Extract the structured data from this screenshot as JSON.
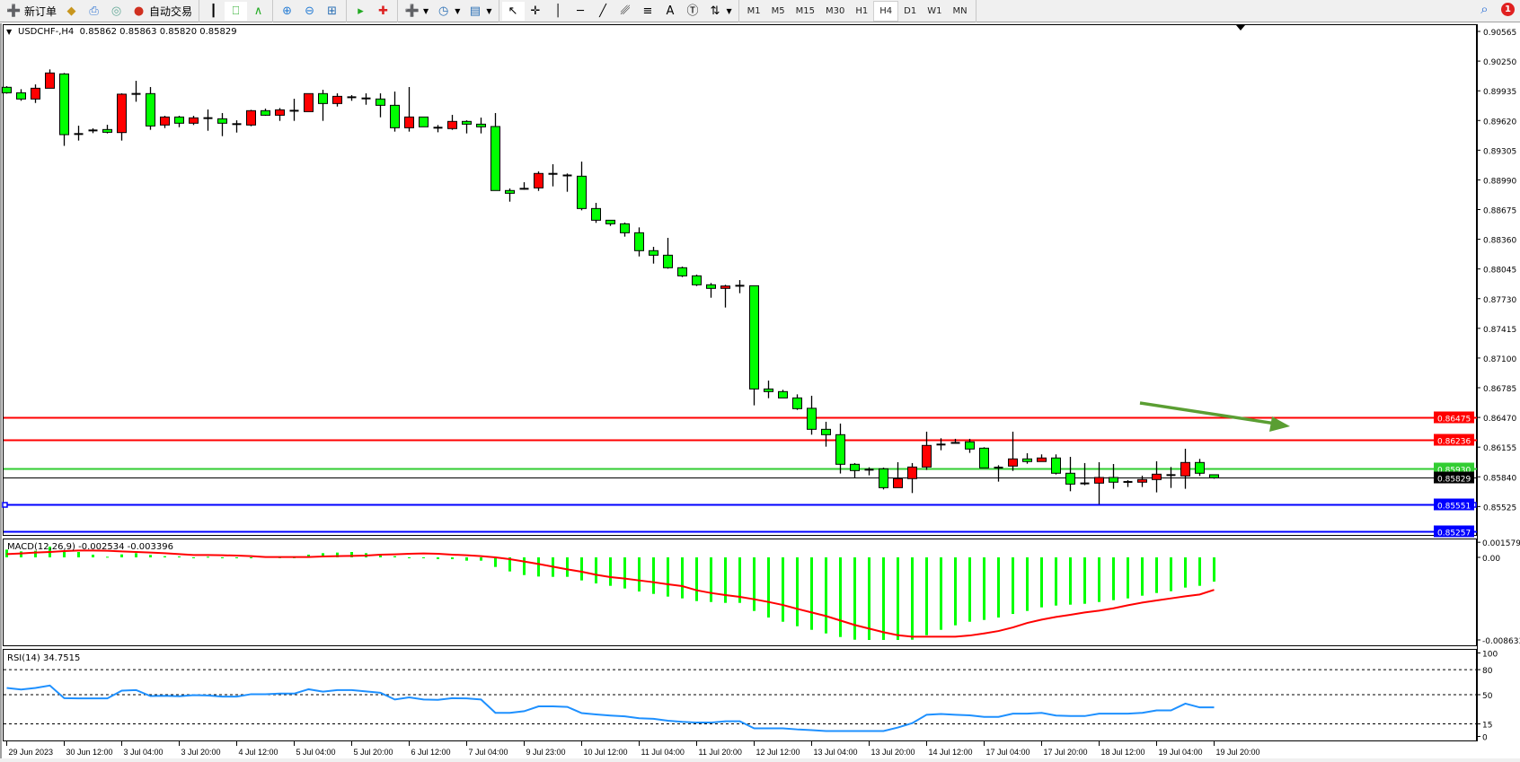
{
  "toolbar": {
    "new_order": "新订单",
    "auto_trading": "自动交易",
    "timeframes": [
      "M1",
      "M5",
      "M15",
      "M30",
      "H1",
      "H4",
      "D1",
      "W1",
      "MN"
    ],
    "active_timeframe": "H4",
    "notification_count": "1"
  },
  "chart": {
    "header": "USDCHF-,H4  0.85862 0.85863 0.85820 0.85829",
    "colors": {
      "bull": "#ff0000",
      "bear": "#00ff00",
      "outline": "#000000",
      "macd_hist": "#00ff00",
      "macd_signal": "#ff0000",
      "rsi": "#1e90ff",
      "arrow": "#5a9e32"
    }
  },
  "chart_data": [
    {
      "type": "candlestick",
      "title": "USDCHF-,H4",
      "ohlc_fields": [
        "open",
        "high",
        "low",
        "close"
      ],
      "candles": [
        [
          0.89972,
          0.89984,
          0.89905,
          0.89914
        ],
        [
          0.89914,
          0.89952,
          0.89829,
          0.89848
        ],
        [
          0.89848,
          0.90003,
          0.89806,
          0.89962
        ],
        [
          0.89962,
          0.90162,
          0.89962,
          0.90124
        ],
        [
          0.90114,
          0.90124,
          0.89351,
          0.8947
        ],
        [
          0.89467,
          0.89565,
          0.89407,
          0.89486
        ],
        [
          0.89505,
          0.89537,
          0.89486,
          0.89524
        ],
        [
          0.89524,
          0.89575,
          0.89483,
          0.89495
        ],
        [
          0.89492,
          0.89908,
          0.89407,
          0.89899
        ],
        [
          0.89902,
          0.90041,
          0.89819,
          0.89902
        ],
        [
          0.89905,
          0.89975,
          0.89521,
          0.89562
        ],
        [
          0.89572,
          0.8967,
          0.8954,
          0.89657
        ],
        [
          0.89657,
          0.8967,
          0.89549,
          0.89591
        ],
        [
          0.89591,
          0.8967,
          0.89572,
          0.89648
        ],
        [
          0.89645,
          0.89737,
          0.89511,
          0.89645
        ],
        [
          0.89638,
          0.89699,
          0.89454,
          0.89591
        ],
        [
          0.89591,
          0.89622,
          0.89492,
          0.89572
        ],
        [
          0.89572,
          0.89733,
          0.89559,
          0.89724
        ],
        [
          0.89724,
          0.89746,
          0.8967,
          0.89676
        ],
        [
          0.89676,
          0.89752,
          0.89616,
          0.89733
        ],
        [
          0.89733,
          0.89851,
          0.89616,
          0.89714
        ],
        [
          0.89714,
          0.89905,
          0.89714,
          0.89905
        ],
        [
          0.89905,
          0.89946,
          0.89616,
          0.898
        ],
        [
          0.898,
          0.89908,
          0.89768,
          0.89876
        ],
        [
          0.89876,
          0.89889,
          0.89829,
          0.89857
        ],
        [
          0.89854,
          0.89908,
          0.89787,
          0.89854
        ],
        [
          0.89848,
          0.89908,
          0.89654,
          0.89781
        ],
        [
          0.89781,
          0.89927,
          0.89502,
          0.89543
        ],
        [
          0.89543,
          0.89975,
          0.89502,
          0.89657
        ],
        [
          0.89657,
          0.89657,
          0.89553,
          0.89553
        ],
        [
          0.89553,
          0.89572,
          0.89495,
          0.89534
        ],
        [
          0.89534,
          0.8968,
          0.89521,
          0.8961
        ],
        [
          0.8961,
          0.89622,
          0.89483,
          0.89581
        ],
        [
          0.89581,
          0.89651,
          0.89483,
          0.89553
        ],
        [
          0.89556,
          0.89699,
          0.88877,
          0.88877
        ],
        [
          0.88877,
          0.88899,
          0.88759,
          0.88848
        ],
        [
          0.88886,
          0.88965,
          0.88886,
          0.88905
        ],
        [
          0.88905,
          0.8908,
          0.88873,
          0.89058
        ],
        [
          0.89054,
          0.89156,
          0.88921,
          0.89054
        ],
        [
          0.89045,
          0.89058,
          0.88864,
          0.89029
        ],
        [
          0.89029,
          0.89184,
          0.88667,
          0.88686
        ],
        [
          0.88686,
          0.88746,
          0.88534,
          0.88562
        ],
        [
          0.88562,
          0.88562,
          0.88502,
          0.88524
        ],
        [
          0.88524,
          0.88537,
          0.88388,
          0.88429
        ],
        [
          0.88429,
          0.88486,
          0.88178,
          0.88239
        ],
        [
          0.88239,
          0.8828,
          0.88102,
          0.88191
        ],
        [
          0.88191,
          0.88375,
          0.88048,
          0.88058
        ],
        [
          0.88058,
          0.8807,
          0.87959,
          0.87972
        ],
        [
          0.87972,
          0.87985,
          0.87864,
          0.87877
        ],
        [
          0.87877,
          0.87896,
          0.8774,
          0.87839
        ],
        [
          0.87839,
          0.87877,
          0.87636,
          0.87864
        ],
        [
          0.87867,
          0.87927,
          0.87788,
          0.87867
        ],
        [
          0.87867,
          0.87867,
          0.86598,
          0.86772
        ],
        [
          0.86772,
          0.86861,
          0.86674,
          0.86744
        ],
        [
          0.86744,
          0.86763,
          0.86677,
          0.86677
        ],
        [
          0.86677,
          0.86715,
          0.8655,
          0.86563
        ],
        [
          0.86567,
          0.867,
          0.86287,
          0.86344
        ],
        [
          0.86344,
          0.86424,
          0.8616,
          0.86287
        ],
        [
          0.86287,
          0.86405,
          0.85875,
          0.85973
        ],
        [
          0.85973,
          0.85986,
          0.85827,
          0.85906
        ],
        [
          0.85906,
          0.85941,
          0.85856,
          0.85925
        ],
        [
          0.85925,
          0.85938,
          0.85706,
          0.85725
        ],
        [
          0.85725,
          0.85995,
          0.85725,
          0.85821
        ],
        [
          0.85821,
          0.85986,
          0.85668,
          0.85944
        ],
        [
          0.85944,
          0.86319,
          0.85913,
          0.86173
        ],
        [
          0.86173,
          0.86249,
          0.86122,
          0.86192
        ],
        [
          0.86197,
          0.86243,
          0.86192,
          0.86203
        ],
        [
          0.86211,
          0.86243,
          0.86094,
          0.86135
        ],
        [
          0.86144,
          0.86154,
          0.85935,
          0.85935
        ],
        [
          0.85938,
          0.85963,
          0.85789,
          0.85938
        ],
        [
          0.85954,
          0.86319,
          0.85903,
          0.8603
        ],
        [
          0.8603,
          0.8609,
          0.85979,
          0.86002
        ],
        [
          0.86002,
          0.86078,
          0.86002,
          0.8604
        ],
        [
          0.8604,
          0.86078,
          0.85865,
          0.85878
        ],
        [
          0.85878,
          0.86052,
          0.85687,
          0.85763
        ],
        [
          0.8577,
          0.85986,
          0.85751,
          0.8577
        ],
        [
          0.85773,
          0.85995,
          0.85551,
          0.85833
        ],
        [
          0.85833,
          0.85976,
          0.85713,
          0.85783
        ],
        [
          0.85786,
          0.85805,
          0.85732,
          0.85786
        ],
        [
          0.85783,
          0.85852,
          0.85732,
          0.85811
        ],
        [
          0.85811,
          0.86005,
          0.85675,
          0.85868
        ],
        [
          0.85868,
          0.85944,
          0.85722,
          0.85849
        ],
        [
          0.85849,
          0.86138,
          0.85713,
          0.85992
        ],
        [
          0.85992,
          0.8603,
          0.85849,
          0.85878
        ],
        [
          0.85862,
          0.85863,
          0.8582,
          0.85829
        ]
      ],
      "x_tick_labels": [
        "29 Jun 2023",
        "30 Jun 12:00",
        "3 Jul 04:00",
        "3 Jul 20:00",
        "4 Jul 12:00",
        "5 Jul 04:00",
        "5 Jul 20:00",
        "6 Jul 12:00",
        "7 Jul 04:00",
        "9 Jul 23:00",
        "10 Jul 12:00",
        "11 Jul 04:00",
        "11 Jul 20:00",
        "12 Jul 12:00",
        "13 Jul 04:00",
        "13 Jul 20:00",
        "14 Jul 12:00",
        "17 Jul 04:00",
        "17 Jul 20:00",
        "18 Jul 12:00",
        "19 Jul 04:00",
        "19 Jul 20:00"
      ],
      "y_tick_labels": [
        "0.90565",
        "0.90250",
        "0.89935",
        "0.89620",
        "0.89305",
        "0.88990",
        "0.88675",
        "0.88360",
        "0.88045",
        "0.87730",
        "0.87415",
        "0.87100",
        "0.86785",
        "0.86470",
        "0.86155",
        "0.85840",
        "0.85525",
        "0.85210"
      ],
      "ylim": [
        0.8521,
        0.90565
      ],
      "horizontal_lines": [
        {
          "price": "0.86475",
          "color": "#ff0000"
        },
        {
          "price": "0.86236",
          "color": "#ff0000"
        },
        {
          "price": "0.85930",
          "color": "#32cd32"
        },
        {
          "price": "0.85829",
          "color": "#000000"
        },
        {
          "price": "0.85551",
          "color": "#0000ff"
        },
        {
          "price": "0.85257",
          "color": "#0000ff"
        }
      ],
      "grid": false
    },
    {
      "type": "bar+line",
      "title": "MACD(12,26,9) -0.002534 -0.003396",
      "y_tick_labels": [
        "0.001579",
        "0.00",
        "-0.008633"
      ],
      "ylim": [
        -0.008633,
        0.001579
      ],
      "series": [
        {
          "kind": "histogram",
          "values": [
            0.000814,
            0.000626,
            0.000689,
            0.001127,
            0.000563,
            0.000563,
            0.000282,
            6.3e-05,
            0.000313,
            0.000438,
            0.00025,
            0.000125,
            9.4e-05,
            0,
            6.3e-05,
            0,
            -3.1e-05,
            0,
            6.3e-05,
            -6.3e-05,
            0,
            0.000282,
            0.000438,
            0.000501,
            0.000563,
            0.000438,
            0.000282,
            0.000125,
            0,
            -9.4e-05,
            -0.000188,
            -0.000188,
            -0.000344,
            -0.000344,
            -0.001002,
            -0.001471,
            -0.001847,
            -0.002003,
            -0.002035,
            -0.002035,
            -0.00241,
            -0.002723,
            -0.002974,
            -0.003255,
            -0.003568,
            -0.003819,
            -0.0041,
            -0.004288,
            -0.00457,
            -0.004664,
            -0.004758,
            -0.004758,
            -0.005603,
            -0.006291,
            -0.00673,
            -0.007199,
            -0.007575,
            -0.00795,
            -0.008326,
            -0.008608,
            -0.008633,
            -0.008633,
            -0.008633,
            -0.008608,
            -0.008138,
            -0.007575,
            -0.007105,
            -0.00673,
            -0.006542,
            -0.006291,
            -0.005916,
            -0.005603,
            -0.005227,
            -0.005039,
            -0.004945,
            -0.004852,
            -0.004664,
            -0.004476,
            -0.004288,
            -0.004006,
            -0.003725,
            -0.003537,
            -0.003161,
            -0.002974,
            -0.002534
          ]
        },
        {
          "kind": "signal",
          "values": [
            0.000344,
            0.000407,
            0.000501,
            0.000563,
            0.000657,
            0.00072,
            0.00072,
            0.000689,
            0.000626,
            0.000563,
            0.000501,
            0.000438,
            0.000344,
            0.00025,
            0.00025,
            0.000219,
            0.000188,
            0.000125,
            3.1e-05,
            3.1e-05,
            3.1e-05,
            3.1e-05,
            9.4e-05,
            0.000125,
            0.000157,
            0.000188,
            0.000282,
            0.000313,
            0.000376,
            0.000407,
            0.000376,
            0.000282,
            0.000219,
            0.000125,
            0,
            -0.000188,
            -0.000438,
            -0.000689,
            -0.00097,
            -0.001252,
            -0.001502,
            -0.001815,
            -0.002066,
            -0.002222,
            -0.00241,
            -0.002598,
            -0.002817,
            -0.003005,
            -0.003443,
            -0.003725,
            -0.003944,
            -0.004132,
            -0.004382,
            -0.004664,
            -0.004977,
            -0.005384,
            -0.005759,
            -0.006135,
            -0.006604,
            -0.007074,
            -0.007449,
            -0.007825,
            -0.008138,
            -0.008295,
            -0.008295,
            -0.008295,
            -0.008295,
            -0.008169,
            -0.00795,
            -0.0077,
            -0.007324,
            -0.006855,
            -0.00651,
            -0.006229,
            -0.00601,
            -0.005759,
            -0.005571,
            -0.005321,
            -0.005008,
            -0.004726,
            -0.004507,
            -0.004288,
            -0.004069,
            -0.003881,
            -0.003396
          ]
        }
      ]
    },
    {
      "type": "line",
      "title": "RSI(14) 34.7515",
      "y_tick_labels": [
        "100",
        "80",
        "50",
        "15",
        "0"
      ],
      "levels": [
        80,
        50,
        15
      ],
      "ylim": [
        0,
        100
      ],
      "values": [
        58.1,
        56.2,
        58.1,
        61.0,
        45.8,
        45.5,
        45.5,
        45.5,
        54.9,
        55.5,
        48.4,
        48.7,
        48.1,
        49.4,
        49.0,
        47.7,
        47.7,
        50.6,
        50.6,
        51.3,
        51.3,
        56.5,
        53.6,
        55.5,
        55.5,
        53.9,
        52.3,
        44.2,
        46.8,
        44.2,
        43.8,
        45.8,
        45.5,
        44.2,
        28.2,
        28.2,
        30.2,
        36.0,
        36.0,
        35.4,
        27.9,
        26.3,
        25.0,
        24.0,
        21.8,
        21.1,
        18.8,
        17.5,
        16.6,
        16.6,
        18.2,
        18.2,
        9.7,
        9.7,
        9.7,
        8.4,
        7.5,
        6.5,
        6.5,
        6.5,
        6.5,
        6.5,
        10.7,
        15.9,
        26.0,
        26.9,
        26.0,
        25.3,
        23.4,
        23.4,
        27.3,
        27.3,
        28.2,
        25.0,
        24.4,
        24.4,
        27.3,
        27.3,
        27.3,
        28.2,
        31.2,
        31.2,
        39.3,
        34.75,
        34.75
      ]
    }
  ]
}
